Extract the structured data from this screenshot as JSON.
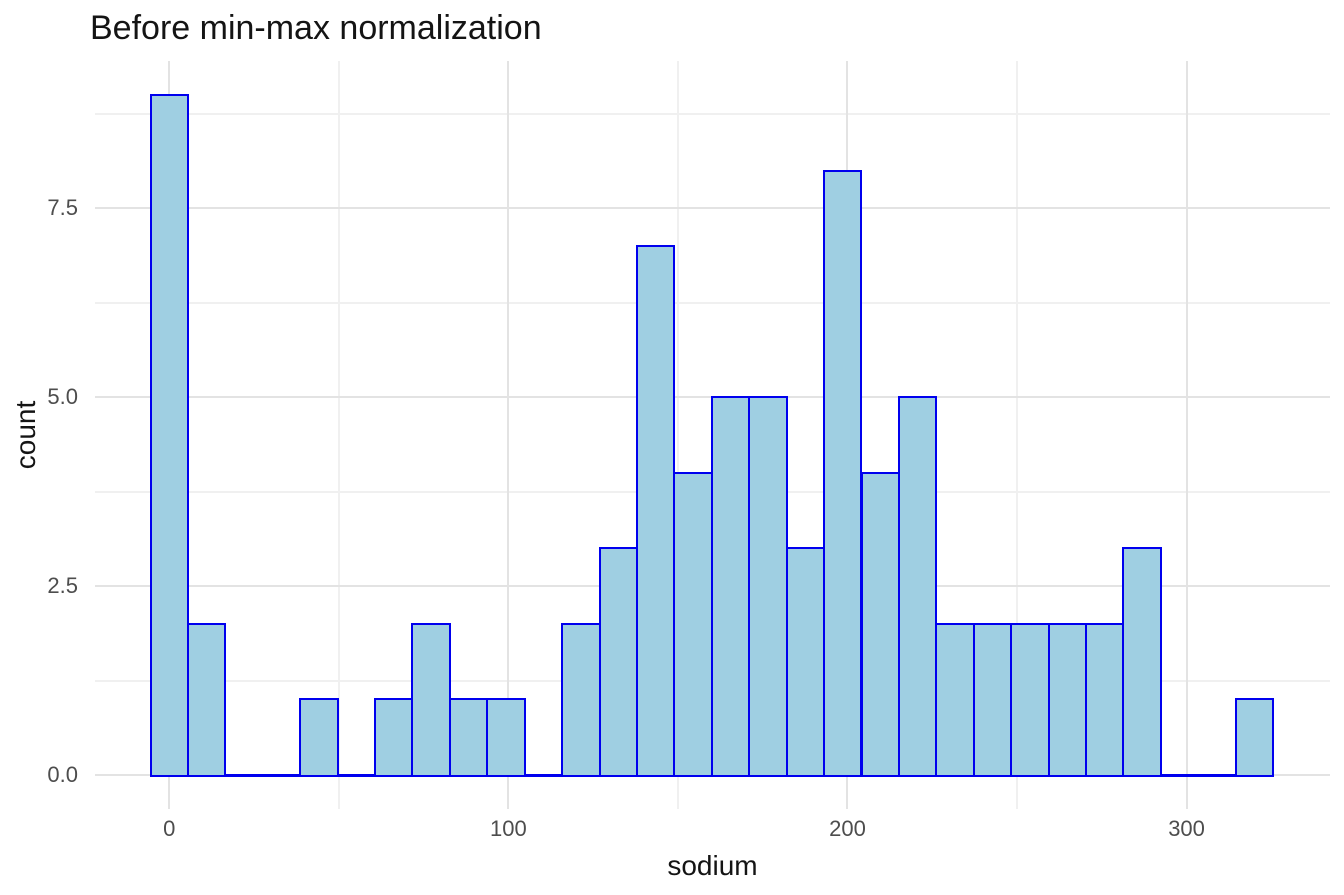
{
  "title": "Before min-max normalization",
  "colors": {
    "background": "#ffffff",
    "bar_fill": "#9fcfe2",
    "bar_border": "#0000ee",
    "grid_major": "#e3e3e3",
    "grid_minor": "#f0f0f0",
    "tick_label": "#4d4d4d",
    "text": "#141414"
  },
  "chart_data": {
    "type": "bar",
    "subtype": "histogram",
    "title": "Before min-max normalization",
    "xlabel": "sodium",
    "ylabel": "count",
    "legend": false,
    "grid": true,
    "bin_width": 11.03,
    "bin_centers": [
      0,
      11.03,
      22.07,
      33.1,
      44.14,
      55.17,
      66.21,
      77.24,
      88.28,
      99.31,
      110.34,
      121.38,
      132.41,
      143.45,
      154.48,
      165.52,
      176.55,
      187.59,
      198.62,
      209.66,
      220.69,
      231.72,
      242.76,
      253.79,
      264.83,
      275.86,
      286.9,
      297.93,
      308.97,
      320
    ],
    "counts": [
      9,
      2,
      0,
      0,
      1,
      0,
      1,
      2,
      1,
      1,
      0,
      2,
      3,
      7,
      4,
      5,
      5,
      3,
      8,
      4,
      5,
      2,
      2,
      2,
      2,
      2,
      3,
      0,
      0,
      1
    ],
    "total_count": 77,
    "x_tick_values": [
      0,
      100,
      200,
      300
    ],
    "x_tick_labels": [
      "0",
      "100",
      "200",
      "300"
    ],
    "x_minor_values": [
      50,
      150,
      250
    ],
    "y_tick_values": [
      0,
      2.5,
      5,
      7.5
    ],
    "y_tick_labels": [
      "0.0",
      "2.5",
      "5.0",
      "7.5"
    ],
    "y_minor_values": [
      1.25,
      3.75,
      6.25,
      8.75
    ],
    "xlim": [
      -21.9,
      342.3
    ],
    "ylim": [
      -0.45,
      9.45
    ]
  }
}
